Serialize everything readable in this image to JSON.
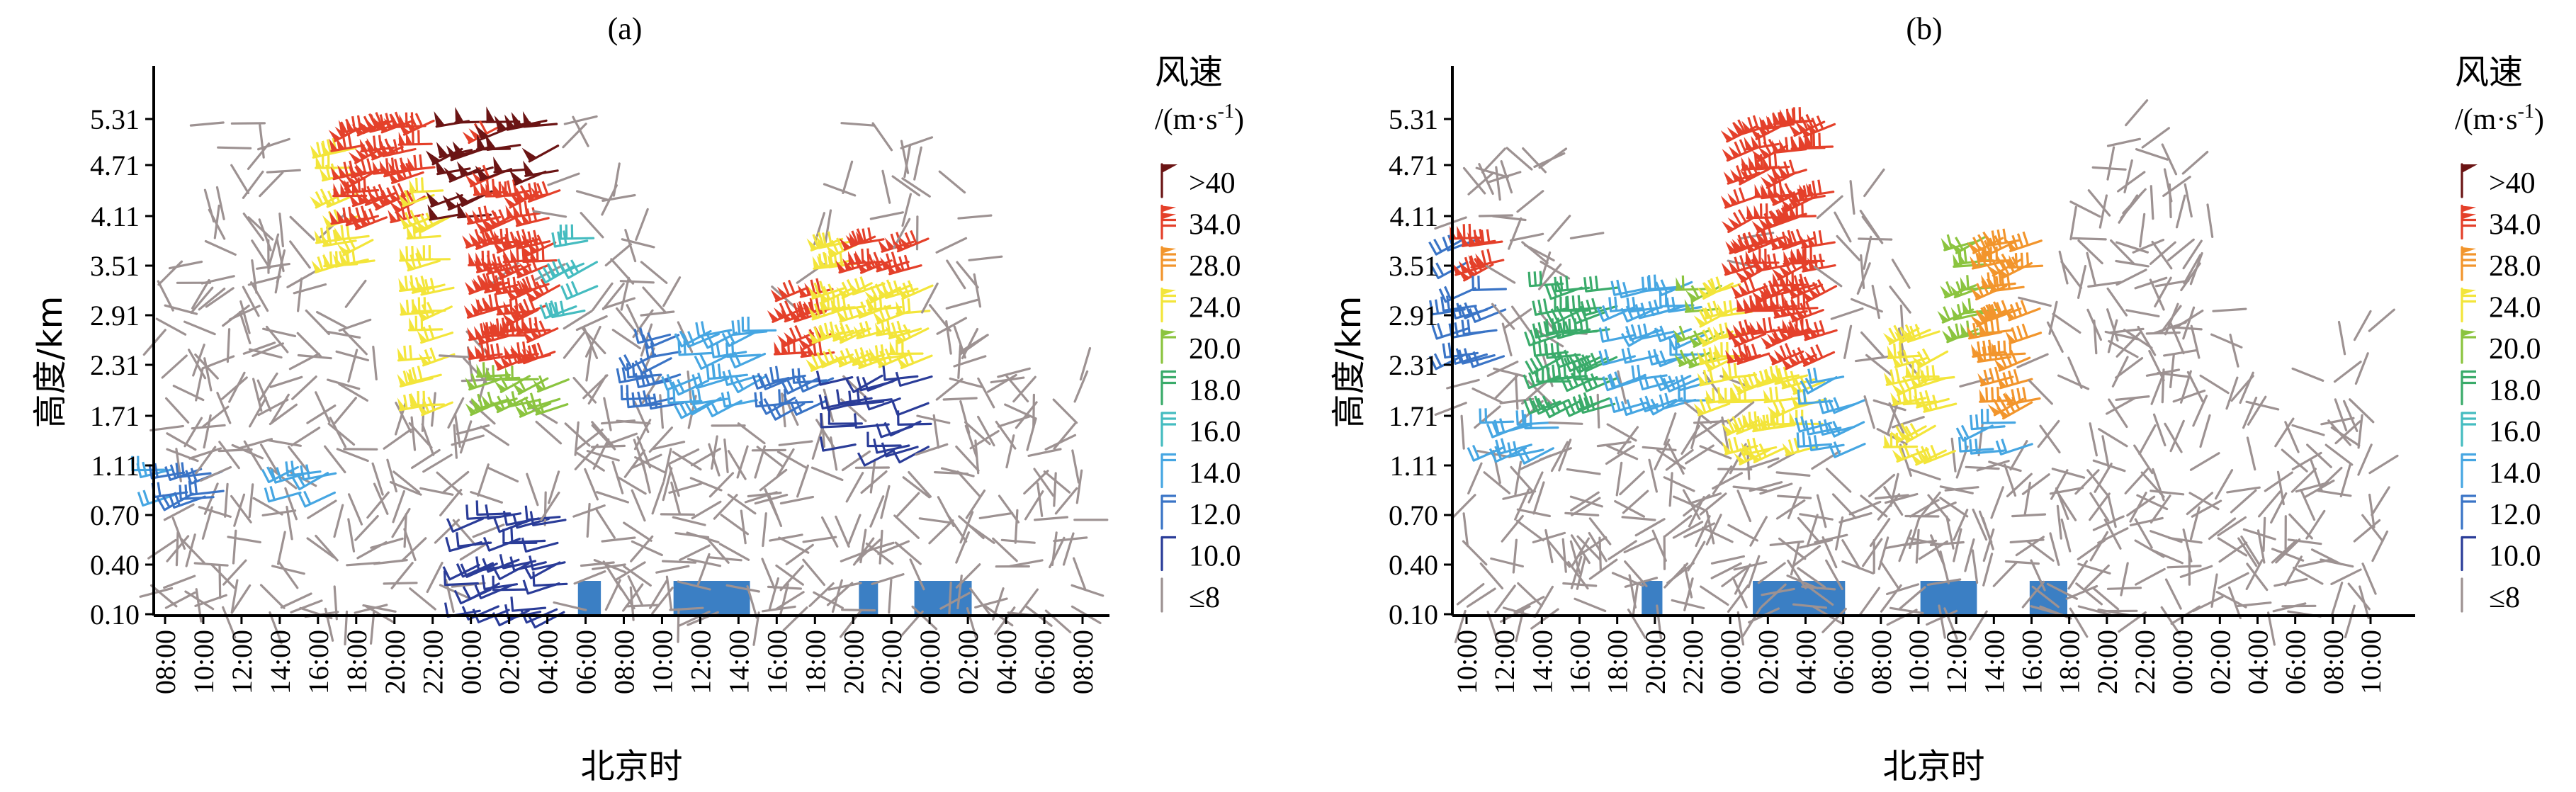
{
  "chart_data": [
    {
      "type": "wind-barb",
      "title": "(a)",
      "xlabel": "北京时",
      "ylabel": "高度/km",
      "yticks": [
        "5.31",
        "4.71",
        "4.11",
        "3.51",
        "2.91",
        "2.31",
        "1.71",
        "1.11",
        "0.70",
        "0.40",
        "0.10"
      ],
      "xticks": [
        "08:00",
        "10:00",
        "12:00",
        "14:00",
        "16:00",
        "18:00",
        "20:00",
        "22:00",
        "00:00",
        "02:00",
        "04:00",
        "06:00",
        "08:00",
        "10:00",
        "12:00",
        "14:00",
        "16:00",
        "18:00",
        "20:00",
        "22:00",
        "00:00",
        "02:00",
        "04:00",
        "06:00",
        "08:00"
      ],
      "precip_periods_hours": [
        [
          21.6,
          22.8
        ],
        [
          26.6,
          30.6
        ],
        [
          36.3,
          37.3
        ],
        [
          39.2,
          42.2
        ]
      ],
      "strong_wind_regions": [
        {
          "hours": [
            0,
            2
          ],
          "levels": [
            2,
            3
          ],
          "class": "14.0"
        },
        {
          "hours": [
            1,
            3
          ],
          "levels": [
            2,
            3
          ],
          "class": "12.0"
        },
        {
          "hours": [
            7,
            9
          ],
          "levels": [
            2,
            3
          ],
          "class": "14.0"
        },
        {
          "hours": [
            9.5,
            11
          ],
          "levels": [
            7,
            10
          ],
          "class": "24.0"
        },
        {
          "hours": [
            10.5,
            12.5
          ],
          "levels": [
            8,
            10
          ],
          "class": "34.0"
        },
        {
          "hours": [
            12.5,
            14
          ],
          "levels": [
            8,
            10
          ],
          "class": "34.0"
        },
        {
          "hours": [
            14,
            15
          ],
          "levels": [
            4,
            9
          ],
          "class": "24.0"
        },
        {
          "hours": [
            15.2,
            17
          ],
          "levels": [
            8,
            10
          ],
          "class": ">40"
        },
        {
          "hours": [
            17.5,
            20.5
          ],
          "levels": [
            4,
            10
          ],
          "class": "34.0"
        },
        {
          "hours": [
            18,
            20.5
          ],
          "levels": [
            9,
            10
          ],
          "class": ">40"
        },
        {
          "hours": [
            17.5,
            21
          ],
          "levels": [
            4,
            5
          ],
          "class": "20.0"
        },
        {
          "hours": [
            16.5,
            21
          ],
          "levels": [
            0,
            2
          ],
          "class": "10.0"
        },
        {
          "hours": [
            21.5,
            22.5
          ],
          "levels": [
            6,
            8
          ],
          "class": "16.0"
        },
        {
          "hours": [
            25.5,
            27
          ],
          "levels": [
            4,
            6
          ],
          "class": "12.0"
        },
        {
          "hours": [
            28,
            33
          ],
          "levels": [
            4,
            6
          ],
          "class": "14.0"
        },
        {
          "hours": [
            33.5,
            35
          ],
          "levels": [
            5,
            7
          ],
          "class": "34.0"
        },
        {
          "hours": [
            32,
            35
          ],
          "levels": [
            4,
            5
          ],
          "class": "12.0"
        },
        {
          "hours": [
            35.5,
            40
          ],
          "levels": [
            5,
            8
          ],
          "class": "24.0"
        },
        {
          "hours": [
            37,
            40
          ],
          "levels": [
            7,
            8
          ],
          "class": "34.0"
        },
        {
          "hours": [
            36,
            40
          ],
          "levels": [
            3,
            5
          ],
          "class": "10.0"
        }
      ],
      "legend": {
        "title": "风速",
        "unit": "/(m·s",
        "unit_sup": "-1",
        "unit_end": ")"
      }
    },
    {
      "type": "wind-barb",
      "title": "(b)",
      "xlabel": "北京时",
      "ylabel": "高度/km",
      "yticks": [
        "5.31",
        "4.71",
        "4.11",
        "3.51",
        "2.91",
        "2.31",
        "1.71",
        "1.11",
        "0.70",
        "0.40",
        "0.10"
      ],
      "xticks": [
        "10:00",
        "12:00",
        "14:00",
        "16:00",
        "18:00",
        "20:00",
        "22:00",
        "00:00",
        "02:00",
        "04:00",
        "06:00",
        "08:00",
        "10:00",
        "12:00",
        "14:00",
        "16:00",
        "18:00",
        "20:00",
        "22:00",
        "00:00",
        "02:00",
        "04:00",
        "06:00",
        "08:00",
        "10:00"
      ],
      "precip_periods_hours": [
        [
          9.3,
          10.4
        ],
        [
          15.2,
          20.1
        ],
        [
          24.1,
          27.1
        ],
        [
          29.9,
          31.9
        ]
      ],
      "strong_wind_regions": [
        {
          "hours": [
            0,
            2
          ],
          "levels": [
            5,
            8
          ],
          "class": "12.0"
        },
        {
          "hours": [
            1,
            2
          ],
          "levels": [
            7,
            8
          ],
          "class": "34.0"
        },
        {
          "hours": [
            2,
            5
          ],
          "levels": [
            3,
            4
          ],
          "class": "14.0"
        },
        {
          "hours": [
            5,
            8
          ],
          "levels": [
            4,
            7
          ],
          "class": "18.0"
        },
        {
          "hours": [
            9,
            13
          ],
          "levels": [
            4,
            7
          ],
          "class": "14.0"
        },
        {
          "hours": [
            13,
            14
          ],
          "levels": [
            5,
            7
          ],
          "class": "20.0"
        },
        {
          "hours": [
            14,
            15.5
          ],
          "levels": [
            4,
            7
          ],
          "class": "24.0"
        },
        {
          "hours": [
            15.5,
            19.5
          ],
          "levels": [
            3,
            10
          ],
          "class": "34.0"
        },
        {
          "hours": [
            15.5,
            19.5
          ],
          "levels": [
            3,
            5
          ],
          "class": "24.0"
        },
        {
          "hours": [
            19.5,
            21
          ],
          "levels": [
            3,
            5
          ],
          "class": "14.0"
        },
        {
          "hours": [
            24,
            26
          ],
          "levels": [
            3,
            6
          ],
          "class": "24.0"
        },
        {
          "hours": [
            27,
            28
          ],
          "levels": [
            5,
            8
          ],
          "class": "20.0"
        },
        {
          "hours": [
            28.5,
            30.5
          ],
          "levels": [
            4,
            8
          ],
          "class": "28.0"
        },
        {
          "hours": [
            28,
            30
          ],
          "levels": [
            3,
            4
          ],
          "class": "14.0"
        }
      ],
      "legend": {
        "title": "风速",
        "unit": "/(m·s",
        "unit_sup": "-1",
        "unit_end": ")"
      }
    }
  ],
  "legend_classes": [
    {
      "label": ">40",
      "color": "#6b1414"
    },
    {
      "label": "34.0",
      "color": "#e4402a"
    },
    {
      "label": "28.0",
      "color": "#f2952c"
    },
    {
      "label": "24.0",
      "color": "#f3e53a"
    },
    {
      "label": "20.0",
      "color": "#8bc43f"
    },
    {
      "label": "18.0",
      "color": "#3aab6a"
    },
    {
      "label": "16.0",
      "color": "#45bcc0"
    },
    {
      "label": "14.0",
      "color": "#46a6e2"
    },
    {
      "label": "12.0",
      "color": "#3a74c6"
    },
    {
      "label": "10.0",
      "color": "#2a3c98"
    },
    {
      "label": "≤8",
      "color": "#9d9292"
    }
  ],
  "colors": {
    "precip": "#3b7fc4",
    "gray_barb": "#9d9292"
  }
}
